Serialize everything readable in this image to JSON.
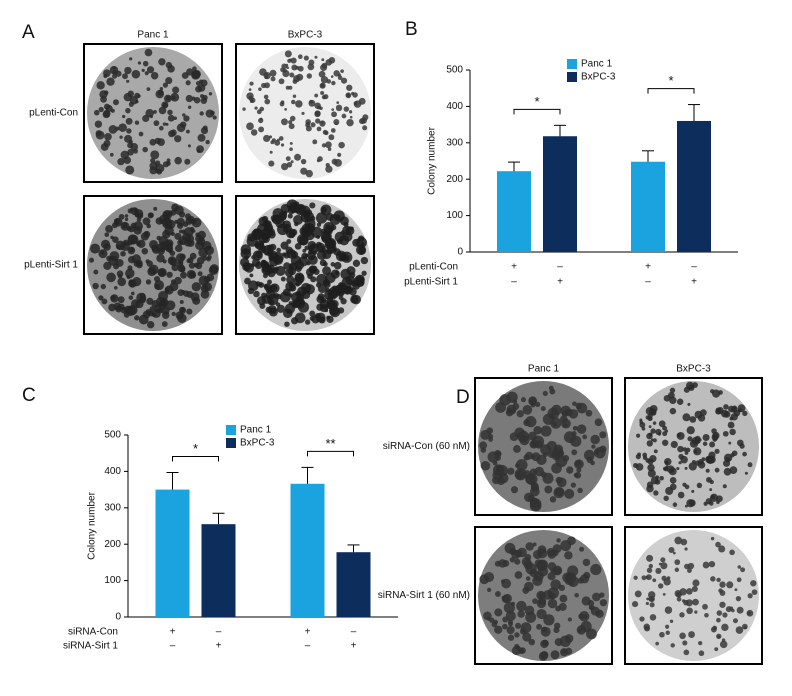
{
  "panels": [
    {
      "label": "A",
      "columns": [
        "Panc 1",
        "BxPC-3"
      ],
      "rows": [
        "pLenti-Con",
        "pLenti-Sirt 1"
      ]
    },
    {
      "label": "D",
      "columns": [
        "Panc 1",
        "BxPC-3"
      ],
      "rows": [
        "siRNA-Con (60 nM)",
        "siRNA-Sirt 1 (60 nM)"
      ]
    }
  ],
  "chart_data": [
    {
      "type": "bar",
      "label": "B",
      "ylabel": "Colony number",
      "categories": [
        null,
        null
      ],
      "series": [
        {
          "name": "Panc 1",
          "color": "#1ba3e0",
          "values": [
            222,
            248
          ],
          "errors": [
            25,
            30
          ]
        },
        {
          "name": "BxPC-3",
          "color": "#0d2d5c",
          "values": [
            318,
            360
          ],
          "errors": [
            30,
            45
          ]
        }
      ],
      "annotations": [
        "*",
        "*"
      ],
      "conditions": [
        {
          "name": "pLenti-Con",
          "marks": [
            "+",
            "–",
            "+",
            "–"
          ]
        },
        {
          "name": "pLenti-Sirt 1",
          "marks": [
            "–",
            "+",
            "–",
            "+"
          ]
        }
      ],
      "ylim": [
        0,
        500
      ],
      "yticks": [
        0,
        100,
        200,
        300,
        400,
        500
      ],
      "legend": "upper center"
    },
    {
      "type": "bar",
      "label": "C",
      "ylabel": "Colony number",
      "categories": [
        null,
        null
      ],
      "series": [
        {
          "name": "Panc 1",
          "color": "#1ba3e0",
          "values": [
            350,
            366
          ],
          "errors": [
            47,
            45
          ]
        },
        {
          "name": "BxPC-3",
          "color": "#0d2d5c",
          "values": [
            255,
            178
          ],
          "errors": [
            30,
            20
          ]
        }
      ],
      "annotations": [
        "*",
        "**"
      ],
      "conditions": [
        {
          "name": "siRNA-Con",
          "marks": [
            "+",
            "–",
            "+",
            "–"
          ]
        },
        {
          "name": "siRNA-Sirt 1",
          "marks": [
            "–",
            "+",
            "–",
            "+"
          ]
        }
      ],
      "ylim": [
        0,
        500
      ],
      "yticks": [
        0,
        100,
        200,
        300,
        400,
        500
      ],
      "legend": "upper center"
    }
  ]
}
